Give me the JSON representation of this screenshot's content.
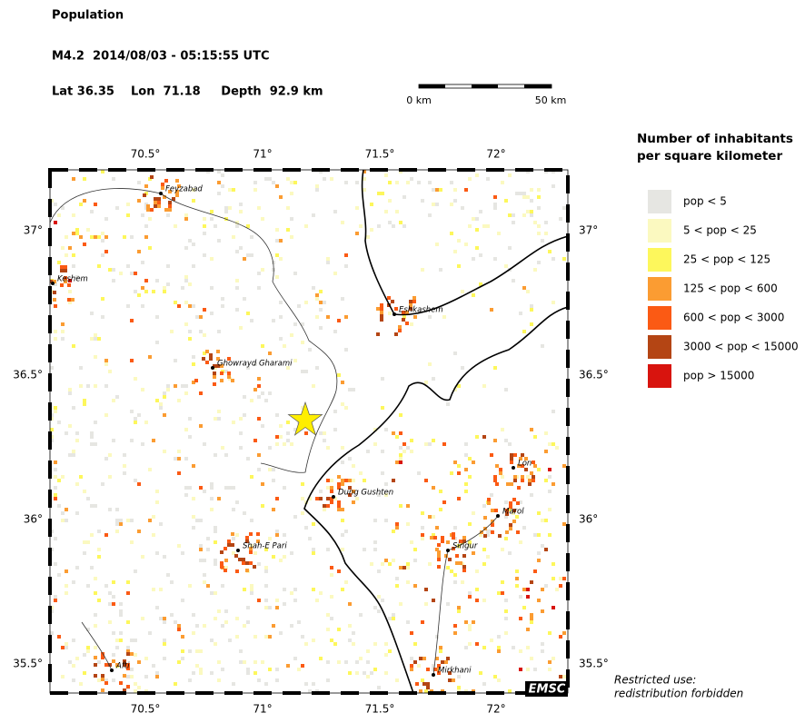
{
  "header": {
    "title": "Population",
    "event": "M4.2  2014/08/03 - 05:15:55 UTC",
    "location": "Lat 36.35    Lon  71.18     Depth  92.9 km"
  },
  "scale_bar": {
    "start": "0 km",
    "end": "50 km"
  },
  "map": {
    "lon_labels": [
      "70.5°",
      "71°",
      "71.5°",
      "72°"
    ],
    "lat_labels": [
      "37°",
      "36.5°",
      "36°",
      "35.5°"
    ],
    "places": [
      "Feyzabad",
      "Keshem",
      "Eshkashem",
      "Ghowrayd Gharami",
      "Lon",
      "Dung Gushten",
      "Marol",
      "Shah-E Pari",
      "Singur",
      "Afti",
      "Mirkhani"
    ],
    "credit": "EMSC"
  },
  "legend": {
    "title": [
      "Number of inhabitants",
      "per square kilometer"
    ],
    "items": [
      {
        "label": "pop < 5",
        "color": "#e6e6e2"
      },
      {
        "label": "5 < pop < 25",
        "color": "#fbf9c0"
      },
      {
        "label": "25 < pop < 125",
        "color": "#fdf75c"
      },
      {
        "label": "125 < pop < 600",
        "color": "#fb9c32"
      },
      {
        "label": "600 < pop < 3000",
        "color": "#fb5a14"
      },
      {
        "label": "3000 < pop < 15000",
        "color": "#b44514"
      },
      {
        "label": "pop > 15000",
        "color": "#d8140e"
      }
    ]
  },
  "notice": [
    "Restricted use:",
    "redistribution forbidden"
  ]
}
